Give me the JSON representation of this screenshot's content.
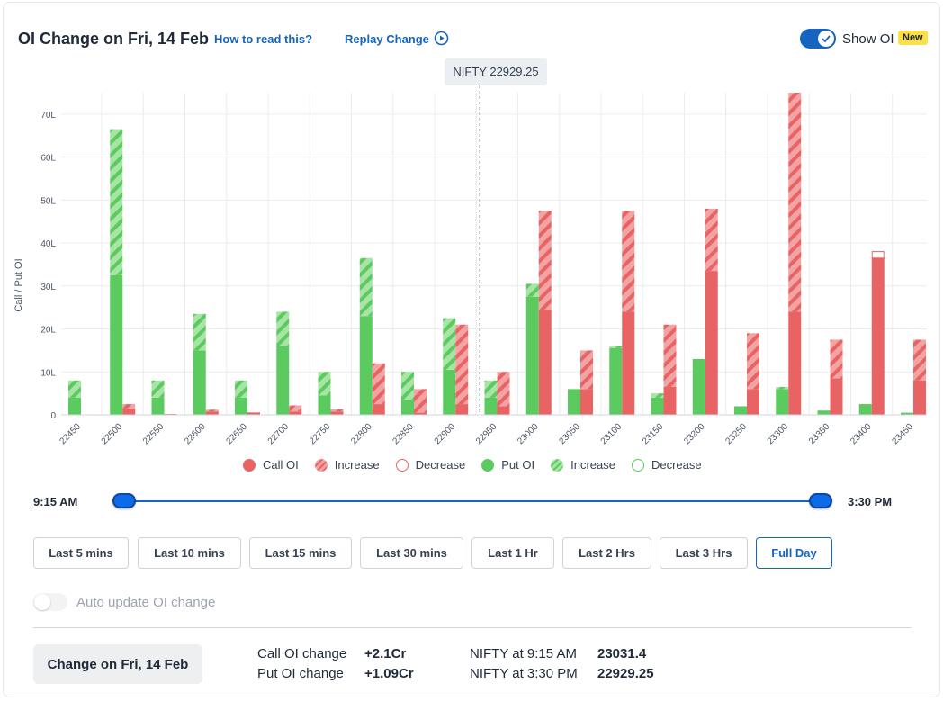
{
  "header": {
    "title": "OI Change on Fri, 14 Feb",
    "how_to_read": "How to read this?",
    "replay": "Replay Change",
    "show_oi_label": "Show OI",
    "new_badge": "New"
  },
  "tooltip": "NIFTY 22929.25",
  "colors": {
    "call": "#e86464",
    "call_light": "#f2a3a3",
    "put": "#5ccb5f",
    "put_light": "#a8e4a6",
    "accent": "#1565c0"
  },
  "chart_data": {
    "type": "bar",
    "ylabel": "Call / Put OI",
    "ylim": [
      0,
      75
    ],
    "yticks": [
      0,
      10,
      20,
      30,
      40,
      50,
      60,
      70
    ],
    "ytick_labels": [
      "0",
      "10L",
      "20L",
      "30L",
      "40L",
      "50L",
      "60L",
      "70L"
    ],
    "grid": true,
    "spot_line_at": "22929.25",
    "categories": [
      "22450",
      "22500",
      "22550",
      "22600",
      "22650",
      "22700",
      "22750",
      "22800",
      "22850",
      "22900",
      "22950",
      "23000",
      "23050",
      "23100",
      "23150",
      "23200",
      "23250",
      "23300",
      "23350",
      "23400",
      "23450"
    ],
    "series": [
      {
        "name": "Put OI",
        "start": [
          4.0,
          32.5,
          4.0,
          15.0,
          4.0,
          16.0,
          4.5,
          23.0,
          3.5,
          10.5,
          4.0,
          27.5,
          6.0,
          15.5,
          4.0,
          13.0,
          2.0,
          6.0,
          1.0,
          2.5,
          0.5
        ],
        "end": [
          8.0,
          66.5,
          8.0,
          23.5,
          8.0,
          24.0,
          10.0,
          36.5,
          10.0,
          22.5,
          8.0,
          30.5,
          6.0,
          16.0,
          5.0,
          13.0,
          2.0,
          6.5,
          1.0,
          2.5,
          0.5
        ]
      },
      {
        "name": "Call OI",
        "start": [
          0.0,
          1.5,
          0.2,
          0.8,
          0.5,
          0.8,
          0.8,
          2.5,
          0.5,
          2.5,
          2.0,
          24.5,
          6.0,
          24.0,
          6.5,
          33.5,
          6.0,
          24.0,
          8.5,
          38.0,
          8.0
        ],
        "end": [
          0.0,
          2.5,
          0.2,
          1.2,
          0.6,
          2.2,
          1.3,
          12.0,
          6.0,
          21.0,
          10.0,
          47.5,
          15.0,
          47.5,
          21.0,
          48.0,
          19.0,
          75.0,
          17.5,
          36.5,
          17.5
        ]
      }
    ],
    "legend": {
      "call": "Call OI",
      "increase": "Increase",
      "decrease": "Decrease",
      "put": "Put OI"
    },
    "legend_position": "bottom"
  },
  "time_range": {
    "start": "9:15 AM",
    "end": "3:30 PM",
    "start_fraction": 0,
    "end_fraction": 1
  },
  "range_buttons": [
    {
      "label": "Last 5 mins"
    },
    {
      "label": "Last 10 mins"
    },
    {
      "label": "Last 15 mins"
    },
    {
      "label": "Last 30 mins"
    },
    {
      "label": "Last 1 Hr"
    },
    {
      "label": "Last 2 Hrs"
    },
    {
      "label": "Last 3 Hrs"
    },
    {
      "label": "Full Day"
    }
  ],
  "active_range": "Full Day",
  "auto_update_label": "Auto update OI change",
  "summary": {
    "button": "Change on Fri, 14 Feb",
    "call_label": "Call OI change",
    "call_value": "+2.1Cr",
    "put_label": "Put OI change",
    "put_value": "+1.09Cr",
    "nifty_open_label": "NIFTY at 9:15 AM",
    "nifty_open_value": "23031.4",
    "nifty_close_label": "NIFTY at 3:30 PM",
    "nifty_close_value": "22929.25"
  }
}
